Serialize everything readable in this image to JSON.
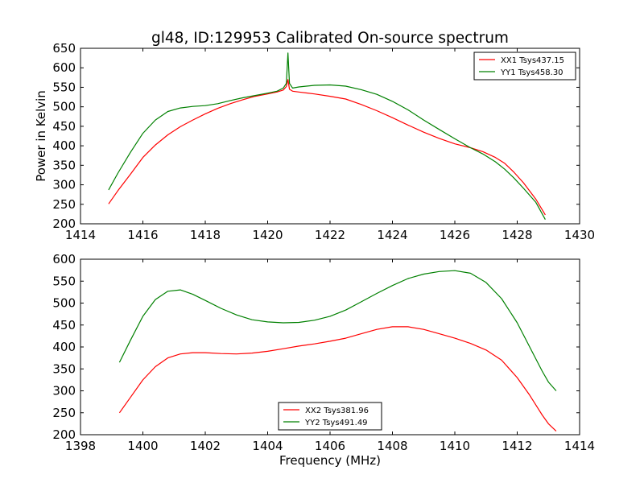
{
  "figure_title": "gl48, ID:129953 Calibrated On-source spectrum",
  "chart_data": [
    {
      "type": "line",
      "title": "gl48, ID:129953 Calibrated On-source spectrum",
      "xlabel": "",
      "ylabel": "Power in Kelvin",
      "xlim": [
        1414,
        1430
      ],
      "ylim": [
        200,
        650
      ],
      "xticks": [
        1414,
        1416,
        1418,
        1420,
        1422,
        1424,
        1426,
        1428,
        1430
      ],
      "yticks": [
        200,
        250,
        300,
        350,
        400,
        450,
        500,
        550,
        600,
        650
      ],
      "legend_position": "top-right",
      "grid": false,
      "series": [
        {
          "name": "XX1 Tsys437.15",
          "color": "#ff0000",
          "x": [
            1414.9,
            1415.2,
            1415.6,
            1416.0,
            1416.4,
            1416.8,
            1417.2,
            1417.6,
            1418.0,
            1418.4,
            1418.8,
            1419.2,
            1419.6,
            1420.0,
            1420.3,
            1420.5,
            1420.6,
            1420.65,
            1420.7,
            1420.8,
            1421.0,
            1421.5,
            1422.0,
            1422.5,
            1423.0,
            1423.5,
            1424.0,
            1424.5,
            1425.0,
            1425.5,
            1426.0,
            1426.5,
            1426.9,
            1427.3,
            1427.6,
            1427.9,
            1428.2,
            1428.6,
            1428.9
          ],
          "y": [
            251,
            285,
            327,
            370,
            402,
            428,
            449,
            466,
            482,
            496,
            508,
            518,
            527,
            533,
            538,
            543,
            552,
            570,
            545,
            540,
            538,
            533,
            527,
            520,
            506,
            490,
            472,
            453,
            435,
            419,
            405,
            395,
            385,
            370,
            355,
            332,
            305,
            263,
            223
          ]
        },
        {
          "name": "YY1 Tsys458.30",
          "color": "#008000",
          "x": [
            1414.9,
            1415.2,
            1415.6,
            1416.0,
            1416.4,
            1416.8,
            1417.2,
            1417.6,
            1418.0,
            1418.4,
            1418.8,
            1419.2,
            1419.6,
            1420.0,
            1420.3,
            1420.5,
            1420.6,
            1420.65,
            1420.7,
            1420.8,
            1421.0,
            1421.5,
            1422.0,
            1422.5,
            1423.0,
            1423.5,
            1424.0,
            1424.5,
            1425.0,
            1425.5,
            1426.0,
            1426.5,
            1426.9,
            1427.3,
            1427.6,
            1427.9,
            1428.2,
            1428.6,
            1428.9
          ],
          "y": [
            287,
            330,
            383,
            432,
            466,
            488,
            497,
            501,
            503,
            508,
            516,
            523,
            529,
            535,
            540,
            548,
            560,
            638,
            560,
            548,
            551,
            555,
            556,
            553,
            544,
            532,
            514,
            492,
            466,
            442,
            418,
            395,
            379,
            359,
            340,
            317,
            291,
            255,
            211
          ]
        }
      ]
    },
    {
      "type": "line",
      "title": "",
      "xlabel": "Frequency (MHz)",
      "ylabel": "",
      "xlim": [
        1398,
        1414
      ],
      "ylim": [
        200,
        600
      ],
      "xticks": [
        1398,
        1400,
        1402,
        1404,
        1406,
        1408,
        1410,
        1412,
        1414
      ],
      "yticks": [
        200,
        250,
        300,
        350,
        400,
        450,
        500,
        550,
        600
      ],
      "legend_position": "bottom-center",
      "grid": false,
      "series": [
        {
          "name": "XX2 Tsys381.96",
          "color": "#ff0000",
          "x": [
            1399.25,
            1399.6,
            1400.0,
            1400.4,
            1400.8,
            1401.2,
            1401.6,
            1402.0,
            1402.5,
            1403.0,
            1403.5,
            1404.0,
            1404.5,
            1405.0,
            1405.5,
            1406.0,
            1406.5,
            1407.0,
            1407.5,
            1408.0,
            1408.5,
            1409.0,
            1409.5,
            1410.0,
            1410.5,
            1411.0,
            1411.5,
            1412.0,
            1412.4,
            1412.8,
            1413.0,
            1413.25
          ],
          "y": [
            250,
            285,
            325,
            355,
            375,
            384,
            387,
            387,
            385,
            384,
            386,
            390,
            396,
            402,
            407,
            413,
            420,
            430,
            440,
            446,
            446,
            440,
            430,
            420,
            408,
            393,
            370,
            330,
            290,
            245,
            225,
            208
          ]
        },
        {
          "name": "YY2 Tsys491.49",
          "color": "#008000",
          "x": [
            1399.25,
            1399.6,
            1400.0,
            1400.4,
            1400.8,
            1401.2,
            1401.6,
            1402.0,
            1402.5,
            1403.0,
            1403.5,
            1404.0,
            1404.5,
            1405.0,
            1405.5,
            1406.0,
            1406.5,
            1407.0,
            1407.5,
            1408.0,
            1408.5,
            1409.0,
            1409.5,
            1410.0,
            1410.5,
            1411.0,
            1411.5,
            1412.0,
            1412.4,
            1412.8,
            1413.0,
            1413.25
          ],
          "y": [
            365,
            415,
            470,
            508,
            527,
            530,
            520,
            506,
            488,
            473,
            462,
            457,
            455,
            456,
            461,
            470,
            484,
            503,
            522,
            540,
            556,
            566,
            572,
            574,
            568,
            547,
            510,
            455,
            400,
            345,
            320,
            300
          ]
        }
      ]
    }
  ]
}
